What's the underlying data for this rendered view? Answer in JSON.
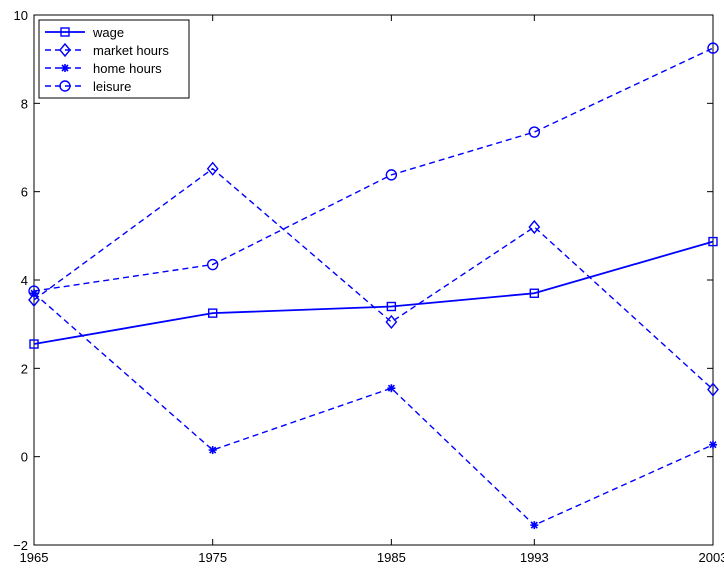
{
  "chart_data": {
    "type": "line",
    "x": [
      1965,
      1975,
      1985,
      1993,
      2003
    ],
    "xticks": [
      "1965",
      "1975",
      "1985",
      "1993",
      "2003"
    ],
    "yticks": [
      "−2",
      "0",
      "2",
      "4",
      "6",
      "8",
      "10"
    ],
    "xlim": [
      1965,
      2003
    ],
    "ylim": [
      -2,
      10
    ],
    "grid": false,
    "legend_position": "top-left",
    "color": "#0000ff",
    "series": [
      {
        "name": "wage",
        "values": [
          2.55,
          3.25,
          3.4,
          3.7,
          4.87
        ],
        "linestyle": "solid",
        "marker": "square"
      },
      {
        "name": "market hours",
        "values": [
          3.55,
          6.52,
          3.05,
          5.2,
          1.52
        ],
        "linestyle": "dashed",
        "marker": "diamond"
      },
      {
        "name": "home hours",
        "values": [
          3.7,
          0.15,
          1.55,
          -1.55,
          0.27
        ],
        "linestyle": "dashed",
        "marker": "asterisk"
      },
      {
        "name": "leisure",
        "values": [
          3.75,
          4.35,
          6.38,
          7.35,
          9.25
        ],
        "linestyle": "dashed",
        "marker": "circle"
      }
    ]
  }
}
